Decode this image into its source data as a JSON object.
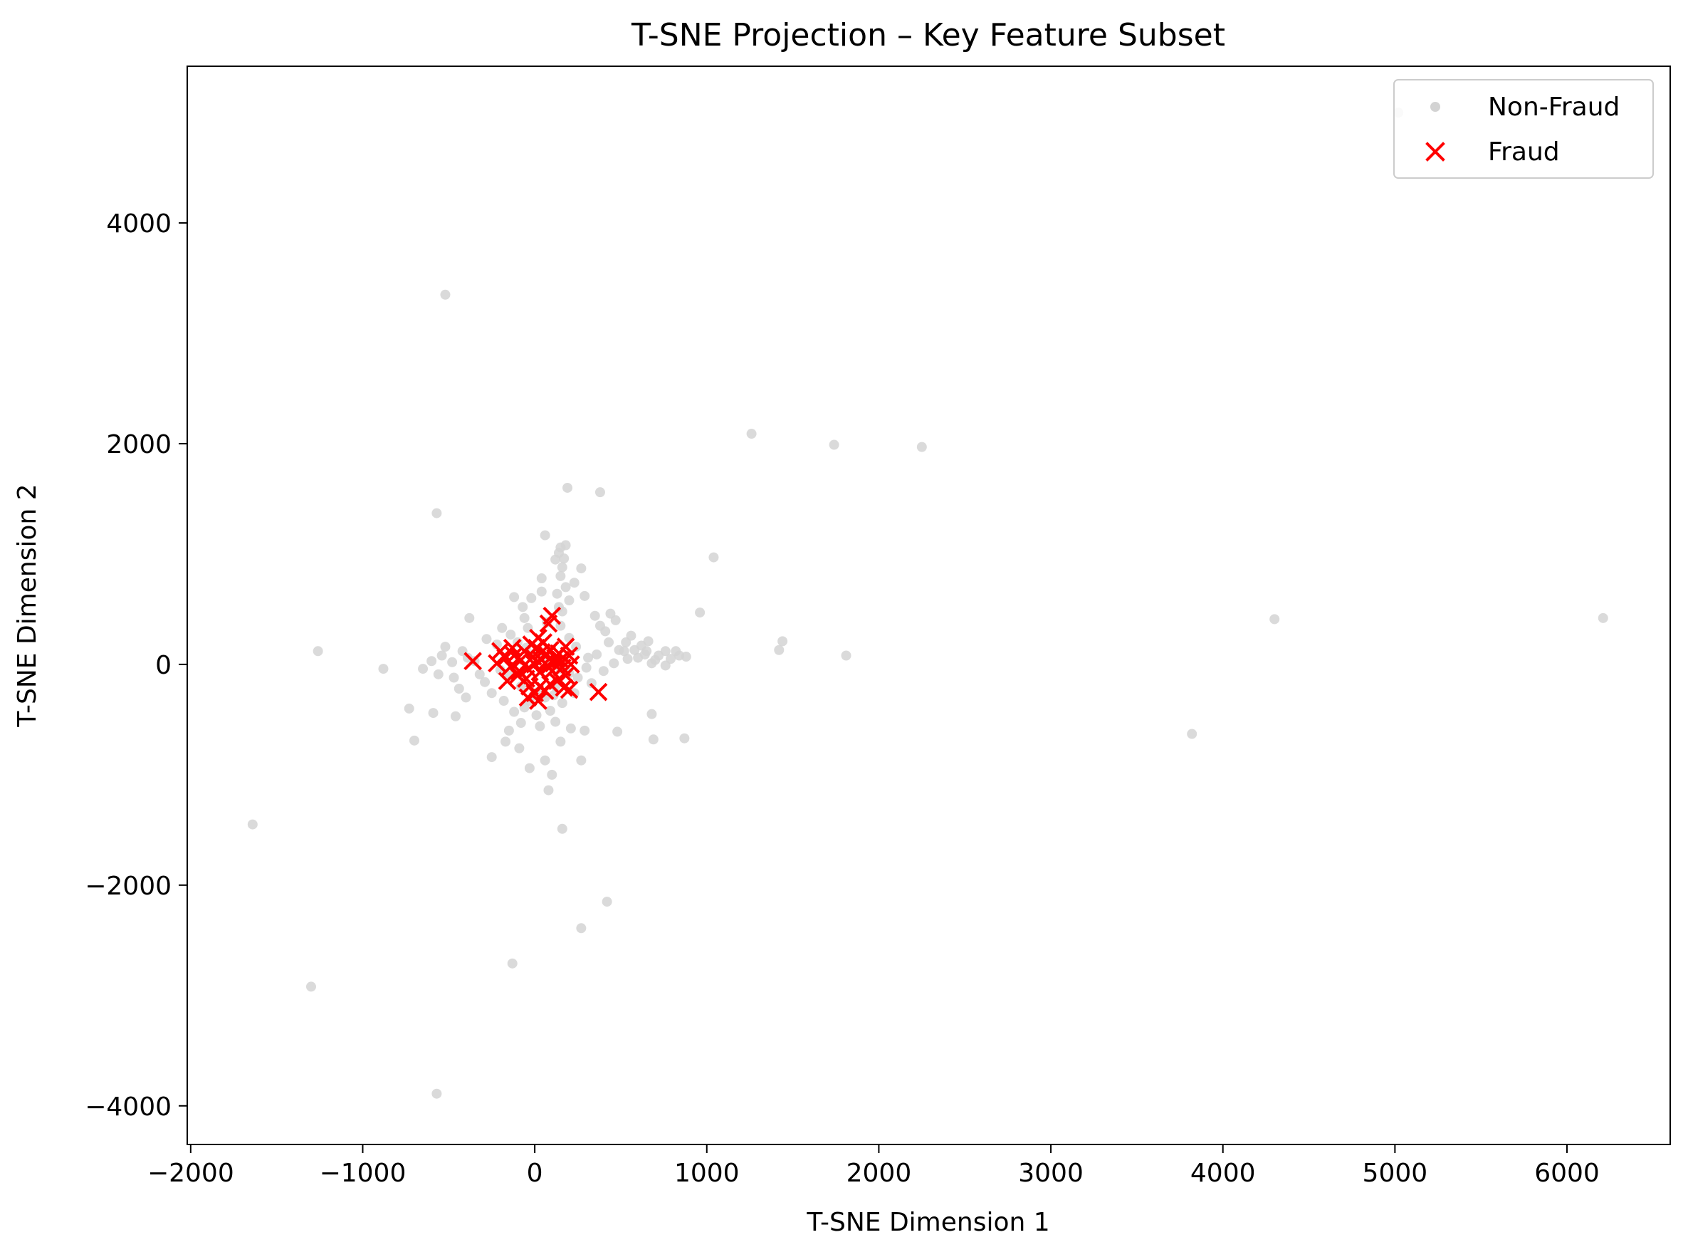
{
  "chart_data": {
    "type": "scatter",
    "title": "T-SNE Projection – Key Feature Subset",
    "xlabel": "T-SNE Dimension 1",
    "ylabel": "T-SNE Dimension 2",
    "xlim": [
      -2020,
      6600
    ],
    "ylim": [
      -4350,
      5420
    ],
    "xticks": [
      -2000,
      -1000,
      0,
      1000,
      2000,
      3000,
      4000,
      5000,
      6000
    ],
    "xtick_labels": [
      "−2000",
      "−1000",
      "0",
      "1000",
      "2000",
      "3000",
      "4000",
      "5000",
      "6000"
    ],
    "yticks": [
      -4000,
      -2000,
      0,
      2000,
      4000
    ],
    "ytick_labels": [
      "−4000",
      "−2000",
      "0",
      "2000",
      "4000"
    ],
    "grid": false,
    "legend_position": "top-right",
    "series": [
      {
        "name": "Non-Fraud",
        "marker": "circle",
        "color": "#d3d3d3",
        "points": [
          [
            -520,
            3350
          ],
          [
            -570,
            1370
          ],
          [
            60,
            1170
          ],
          [
            190,
            1600
          ],
          [
            380,
            1560
          ],
          [
            1260,
            2090
          ],
          [
            1740,
            1990
          ],
          [
            2250,
            1970
          ],
          [
            5020,
            5000
          ],
          [
            1040,
            970
          ],
          [
            960,
            470
          ],
          [
            1440,
            210
          ],
          [
            1420,
            130
          ],
          [
            1810,
            80
          ],
          [
            4300,
            410
          ],
          [
            6210,
            420
          ],
          [
            3820,
            -630
          ],
          [
            -1260,
            120
          ],
          [
            -880,
            -40
          ],
          [
            -730,
            -400
          ],
          [
            -700,
            -690
          ],
          [
            -590,
            -440
          ],
          [
            -1640,
            -1450
          ],
          [
            -1300,
            -2920
          ],
          [
            -570,
            -3890
          ],
          [
            -130,
            -2710
          ],
          [
            160,
            -1490
          ],
          [
            270,
            -2390
          ],
          [
            420,
            -2150
          ],
          [
            100,
            -1000
          ],
          [
            80,
            -1140
          ],
          [
            60,
            -870
          ],
          [
            680,
            -450
          ],
          [
            690,
            -680
          ],
          [
            870,
            -670
          ],
          [
            -250,
            -840
          ],
          [
            -170,
            -700
          ],
          [
            480,
            -610
          ],
          [
            -30,
            -940
          ],
          [
            270,
            -870
          ],
          [
            290,
            -600
          ],
          [
            210,
            -580
          ],
          [
            150,
            -700
          ],
          [
            -90,
            -760
          ],
          [
            -460,
            -470
          ],
          [
            -380,
            420
          ],
          [
            -280,
            230
          ],
          [
            -120,
            610
          ],
          [
            40,
            780
          ],
          [
            160,
            880
          ],
          [
            270,
            870
          ],
          [
            290,
            620
          ],
          [
            230,
            740
          ],
          [
            140,
            520
          ],
          [
            -70,
            520
          ],
          [
            -190,
            330
          ],
          [
            -60,
            420
          ],
          [
            350,
            440
          ],
          [
            440,
            460
          ],
          [
            470,
            400
          ],
          [
            560,
            260
          ],
          [
            660,
            210
          ],
          [
            760,
            120
          ],
          [
            840,
            80
          ],
          [
            880,
            70
          ],
          [
            600,
            60
          ],
          [
            700,
            40
          ],
          [
            520,
            120
          ],
          [
            430,
            200
          ],
          [
            360,
            90
          ],
          [
            300,
            -30
          ],
          [
            250,
            -120
          ],
          [
            330,
            -170
          ],
          [
            400,
            -60
          ],
          [
            460,
            10
          ],
          [
            -420,
            120
          ],
          [
            -390,
            60
          ],
          [
            -320,
            -90
          ],
          [
            -290,
            -160
          ],
          [
            -350,
            30
          ],
          [
            -250,
            -260
          ],
          [
            -180,
            -330
          ],
          [
            -120,
            -430
          ],
          [
            -60,
            -390
          ],
          [
            10,
            -460
          ],
          [
            90,
            -420
          ],
          [
            160,
            -350
          ],
          [
            230,
            -260
          ],
          [
            -150,
            -600
          ],
          [
            -80,
            -530
          ],
          [
            30,
            -560
          ],
          [
            120,
            -520
          ],
          [
            -220,
            180
          ],
          [
            -140,
            270
          ],
          [
            -40,
            330
          ],
          [
            70,
            380
          ],
          [
            150,
            350
          ],
          [
            200,
            240
          ],
          [
            240,
            160
          ],
          [
            310,
            60
          ],
          [
            -600,
            30
          ],
          [
            -540,
            80
          ],
          [
            -480,
            20
          ],
          [
            -650,
            -40
          ],
          [
            -560,
            -90
          ],
          [
            -470,
            -120
          ],
          [
            -520,
            160
          ],
          [
            -440,
            -220
          ],
          [
            -400,
            -300
          ],
          [
            120,
            950
          ],
          [
            150,
            1060
          ],
          [
            140,
            1010
          ],
          [
            170,
            960
          ],
          [
            180,
            1080
          ],
          [
            150,
            800
          ],
          [
            180,
            700
          ],
          [
            130,
            640
          ],
          [
            200,
            580
          ],
          [
            160,
            480
          ],
          [
            620,
            170
          ],
          [
            580,
            130
          ],
          [
            540,
            50
          ],
          [
            490,
            130
          ],
          [
            410,
            300
          ],
          [
            380,
            350
          ],
          [
            530,
            200
          ],
          [
            650,
            120
          ],
          [
            720,
            80
          ],
          [
            790,
            50
          ],
          [
            820,
            120
          ],
          [
            760,
            -10
          ],
          [
            680,
            10
          ],
          [
            640,
            90
          ],
          [
            -20,
            600
          ],
          [
            40,
            660
          ],
          [
            -100,
            200
          ],
          [
            -50,
            150
          ],
          [
            0,
            100
          ],
          [
            50,
            60
          ],
          [
            100,
            20
          ],
          [
            150,
            -40
          ],
          [
            200,
            -80
          ],
          [
            -150,
            -100
          ],
          [
            -200,
            -50
          ],
          [
            -80,
            -200
          ],
          [
            20,
            -250
          ],
          [
            120,
            -200
          ],
          [
            60,
            -300
          ],
          [
            -30,
            -330
          ],
          [
            110,
            -280
          ]
        ]
      },
      {
        "name": "Fraud",
        "marker": "x",
        "color": "#ff0000",
        "points": [
          [
            -360,
            30
          ],
          [
            100,
            440
          ],
          [
            80,
            370
          ],
          [
            -200,
            120
          ],
          [
            -170,
            60
          ],
          [
            -220,
            10
          ],
          [
            -140,
            -20
          ],
          [
            -120,
            80
          ],
          [
            -100,
            -100
          ],
          [
            -160,
            -150
          ],
          [
            -50,
            -130
          ],
          [
            -30,
            -200
          ],
          [
            -40,
            -300
          ],
          [
            0,
            -260
          ],
          [
            20,
            -330
          ],
          [
            30,
            -200
          ],
          [
            60,
            -240
          ],
          [
            90,
            -180
          ],
          [
            130,
            -150
          ],
          [
            170,
            -210
          ],
          [
            200,
            -230
          ],
          [
            370,
            -250
          ],
          [
            180,
            160
          ],
          [
            200,
            80
          ],
          [
            210,
            0
          ],
          [
            160,
            -30
          ],
          [
            120,
            60
          ],
          [
            90,
            130
          ],
          [
            50,
            200
          ],
          [
            20,
            240
          ],
          [
            -20,
            180
          ],
          [
            -60,
            120
          ],
          [
            -80,
            40
          ],
          [
            -40,
            -40
          ],
          [
            0,
            0
          ],
          [
            40,
            40
          ],
          [
            80,
            -20
          ],
          [
            110,
            10
          ],
          [
            140,
            100
          ],
          [
            70,
            90
          ],
          [
            30,
            -70
          ],
          [
            -10,
            70
          ],
          [
            10,
            150
          ],
          [
            60,
            10
          ],
          [
            100,
            -60
          ],
          [
            -90,
            -60
          ],
          [
            150,
            40
          ],
          [
            180,
            -100
          ],
          [
            -130,
            150
          ],
          [
            40,
            110
          ]
        ]
      }
    ]
  }
}
